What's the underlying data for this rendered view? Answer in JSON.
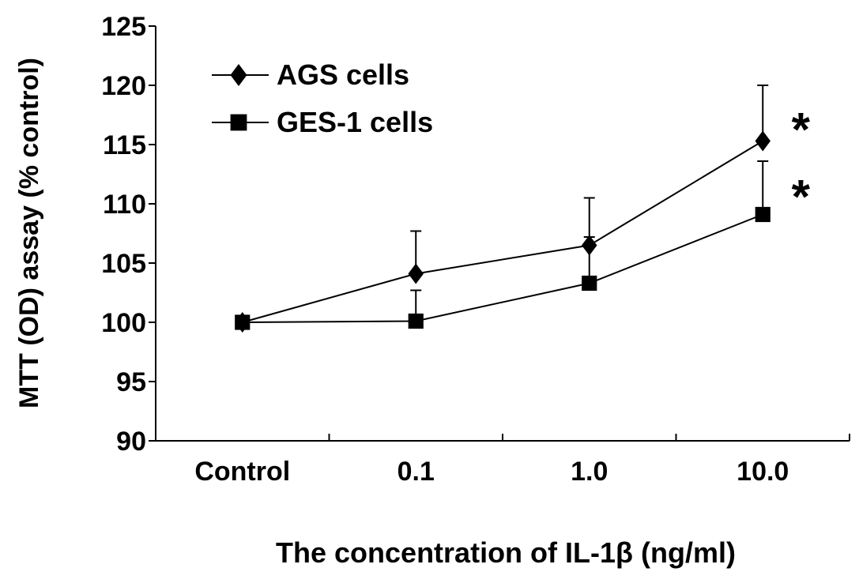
{
  "chart_data": {
    "type": "line",
    "categories": [
      "Control",
      "0.1",
      "1.0",
      "10.0"
    ],
    "xlabel": "The concentration of IL-1β (ng/ml)",
    "ylabel": "MTT (OD) assay (% control)",
    "ylim": [
      90,
      125
    ],
    "yticks": [
      90,
      95,
      100,
      105,
      110,
      115,
      120,
      125
    ],
    "grid": false,
    "legend_position": "top-left",
    "series": [
      {
        "name": "AGS cells",
        "marker": "diamond",
        "values": [
          100,
          104.1,
          106.5,
          115.3
        ],
        "error_upper": [
          null,
          107.7,
          110.5,
          120.0
        ],
        "significance": [
          "",
          "",
          "",
          "*"
        ]
      },
      {
        "name": "GES-1 cells",
        "marker": "square",
        "values": [
          100,
          100.1,
          103.3,
          109.1
        ],
        "error_upper": [
          null,
          102.7,
          107.2,
          113.6
        ],
        "significance": [
          "",
          "",
          "",
          "*"
        ]
      }
    ],
    "colors": {
      "line": "#000000",
      "background": "#ffffff"
    }
  }
}
